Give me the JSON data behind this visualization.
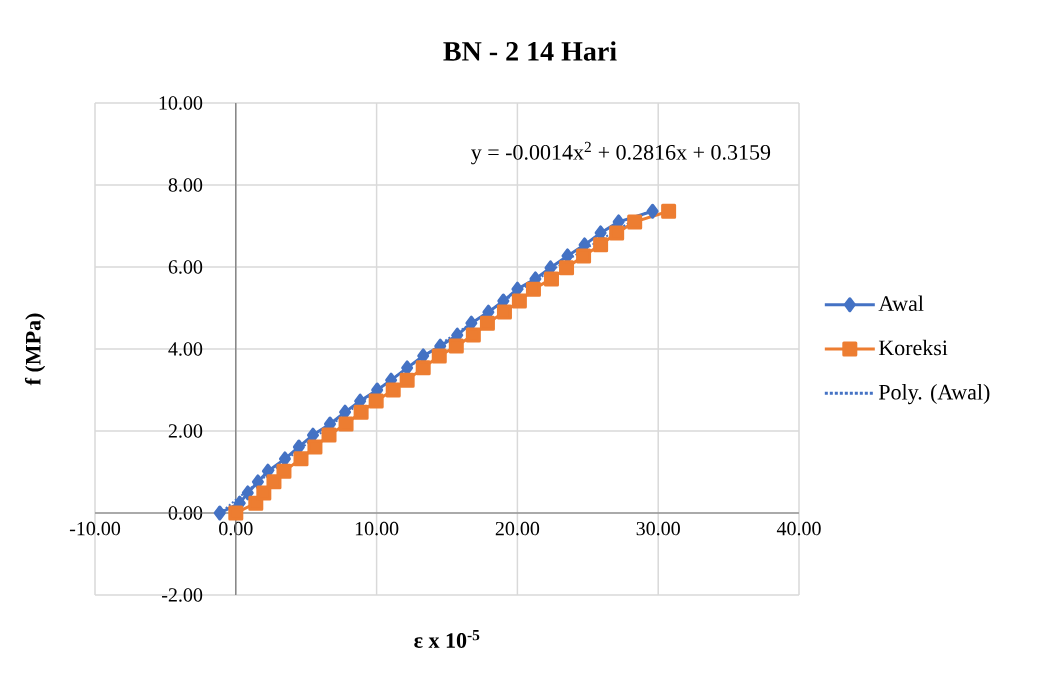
{
  "chart_data": {
    "type": "line",
    "title": "BN - 2 14 Hari",
    "xlabel": "ε x 10$^{-5}$",
    "ylabel": "f (MPa)",
    "annotations": [
      "y = -0.0014x$^{2}$ + 0.2816x + 0.3159"
    ],
    "xlim": [
      -10,
      40
    ],
    "ylim": [
      -2,
      10
    ],
    "xticks": [
      {
        "value": -10,
        "label": "-10.00"
      },
      {
        "value": 0,
        "label": "0.00"
      },
      {
        "value": 10,
        "label": "10.00"
      },
      {
        "value": 20,
        "label": "20.00"
      },
      {
        "value": 30,
        "label": "30.00"
      },
      {
        "value": 40,
        "label": "40.00"
      }
    ],
    "yticks": [
      {
        "value": -2,
        "label": "-2.00"
      },
      {
        "value": 0,
        "label": "0.00"
      },
      {
        "value": 2,
        "label": "2.00"
      },
      {
        "value": 4,
        "label": "4.00"
      },
      {
        "value": 6,
        "label": "6.00"
      },
      {
        "value": 8,
        "label": "8.00"
      },
      {
        "value": 10,
        "label": "10.00"
      }
    ],
    "grid": true,
    "legend": "right",
    "series": [
      {
        "name": "Awal",
        "marker": "diamond",
        "color": "#4472c4",
        "x": [
          -1.14,
          0.28,
          0.85,
          1.57,
          2.28,
          3.49,
          4.48,
          5.48,
          6.69,
          7.76,
          8.83,
          10.04,
          11.03,
          12.17,
          13.31,
          14.52,
          15.73,
          16.73,
          17.94,
          19.0,
          20.0,
          21.28,
          22.35,
          23.56,
          24.77,
          25.91,
          27.19,
          29.6
        ],
        "values": [
          0,
          0.24,
          0.49,
          0.76,
          1.02,
          1.32,
          1.61,
          1.9,
          2.17,
          2.46,
          2.73,
          3.0,
          3.24,
          3.54,
          3.83,
          4.07,
          4.34,
          4.63,
          4.9,
          5.17,
          5.46,
          5.71,
          5.98,
          6.27,
          6.54,
          6.83,
          7.1,
          7.36
        ]
      },
      {
        "name": "Koreksi",
        "marker": "square",
        "color": "#ed7d31",
        "x": [
          0,
          1.42,
          1.99,
          2.71,
          3.42,
          4.63,
          5.62,
          6.62,
          7.83,
          8.9,
          9.97,
          11.18,
          12.17,
          13.31,
          14.45,
          15.66,
          16.87,
          17.87,
          19.08,
          20.14,
          21.14,
          22.42,
          23.49,
          24.7,
          25.91,
          27.05,
          28.33,
          30.74
        ],
        "values": [
          0,
          0.24,
          0.49,
          0.76,
          1.02,
          1.32,
          1.61,
          1.9,
          2.17,
          2.46,
          2.73,
          3.0,
          3.24,
          3.54,
          3.83,
          4.07,
          4.34,
          4.63,
          4.9,
          5.17,
          5.46,
          5.71,
          5.98,
          6.27,
          6.54,
          6.83,
          7.1,
          7.36
        ]
      },
      {
        "name": "Poly. (Awal)",
        "marker": "none",
        "line_style": "dotted",
        "color": "#4472c4",
        "x": [
          -1.14,
          0,
          5,
          10,
          15,
          20,
          25,
          29.6
        ],
        "values": [
          -0.01,
          0.32,
          1.68,
          2.99,
          4.23,
          5.39,
          6.48,
          7.42
        ]
      }
    ]
  }
}
